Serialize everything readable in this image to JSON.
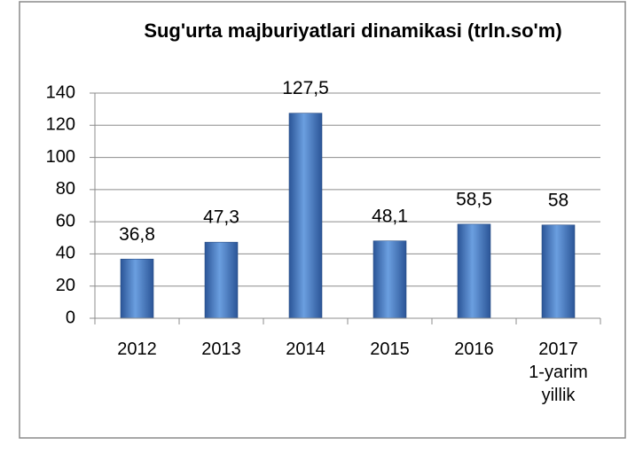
{
  "chart_data": {
    "type": "bar",
    "title": "Sug'urta majburiyatlari dinamikasi (trln.so'm)",
    "categories": [
      "2012",
      "2013",
      "2014",
      "2015",
      "2016",
      "2017\n1-yarim\nyillik"
    ],
    "values": [
      36.8,
      47.3,
      127.5,
      48.1,
      58.5,
      58
    ],
    "value_labels": [
      "36,8",
      "47,3",
      "127,5",
      "48,1",
      "58,5",
      "58"
    ],
    "color": "#3a6fbf",
    "ylim": [
      0,
      140
    ],
    "yticks": [
      0,
      20,
      40,
      60,
      80,
      100,
      120,
      140
    ],
    "grid": true
  }
}
